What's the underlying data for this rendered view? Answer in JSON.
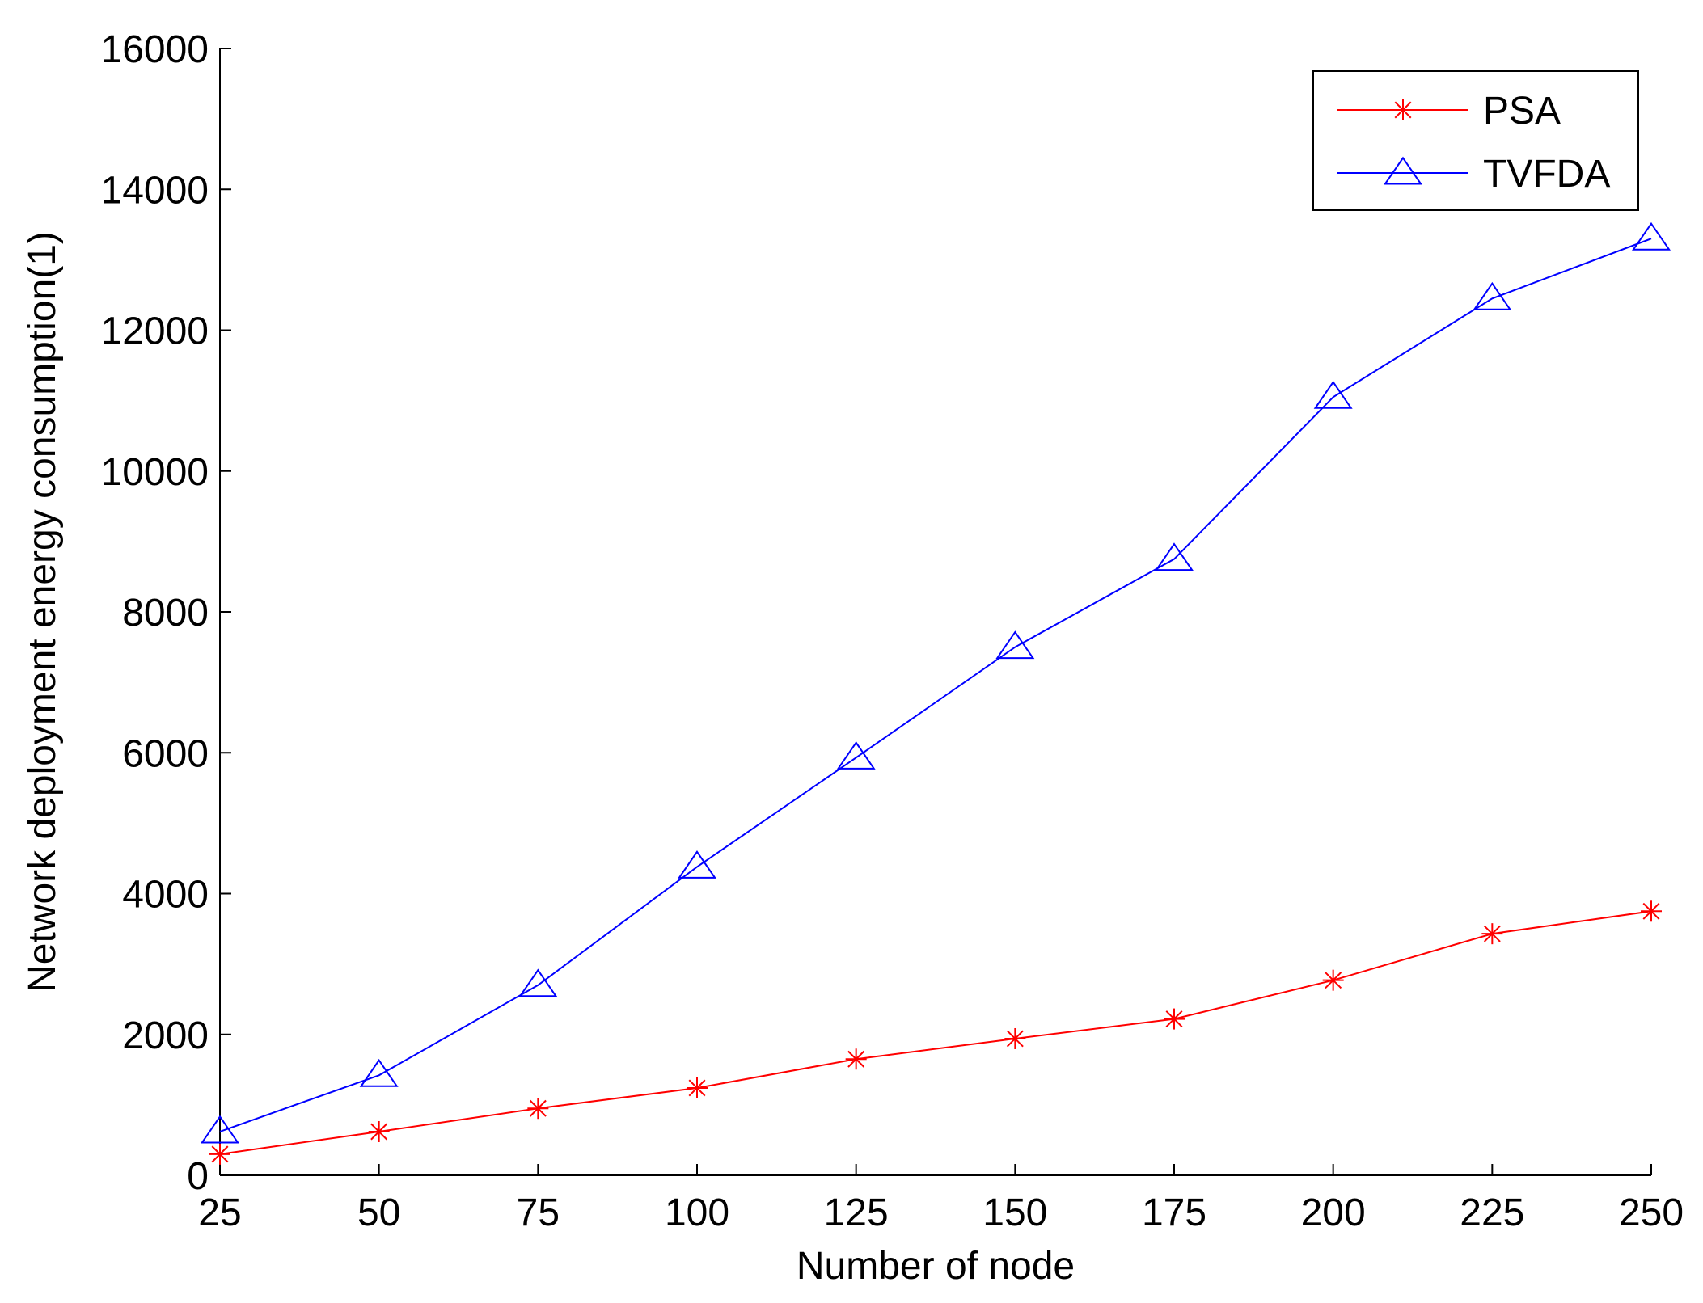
{
  "chart_data": {
    "type": "line",
    "title": "",
    "xlabel": "Number of node",
    "ylabel": "Network deployment energy consumption(1)",
    "x": [
      25,
      50,
      75,
      100,
      125,
      150,
      175,
      200,
      225,
      250
    ],
    "xlim": [
      25,
      250
    ],
    "ylim": [
      0,
      16000
    ],
    "x_ticks": [
      "25",
      "50",
      "75",
      "100",
      "125",
      "150",
      "175",
      "200",
      "225",
      "250"
    ],
    "y_ticks": [
      "0",
      "2000",
      "4000",
      "6000",
      "8000",
      "10000",
      "12000",
      "14000",
      "16000"
    ],
    "grid": false,
    "legend_position": "top-right",
    "series": [
      {
        "name": "PSA",
        "color": "#ff0000",
        "marker": "asterisk",
        "values": [
          300,
          620,
          950,
          1240,
          1650,
          1940,
          2220,
          2770,
          3430,
          3750
        ]
      },
      {
        "name": "TVFDA",
        "color": "#0000ff",
        "marker": "triangle",
        "values": [
          620,
          1420,
          2700,
          4380,
          5930,
          7500,
          8750,
          11050,
          12450,
          13300
        ]
      }
    ]
  }
}
